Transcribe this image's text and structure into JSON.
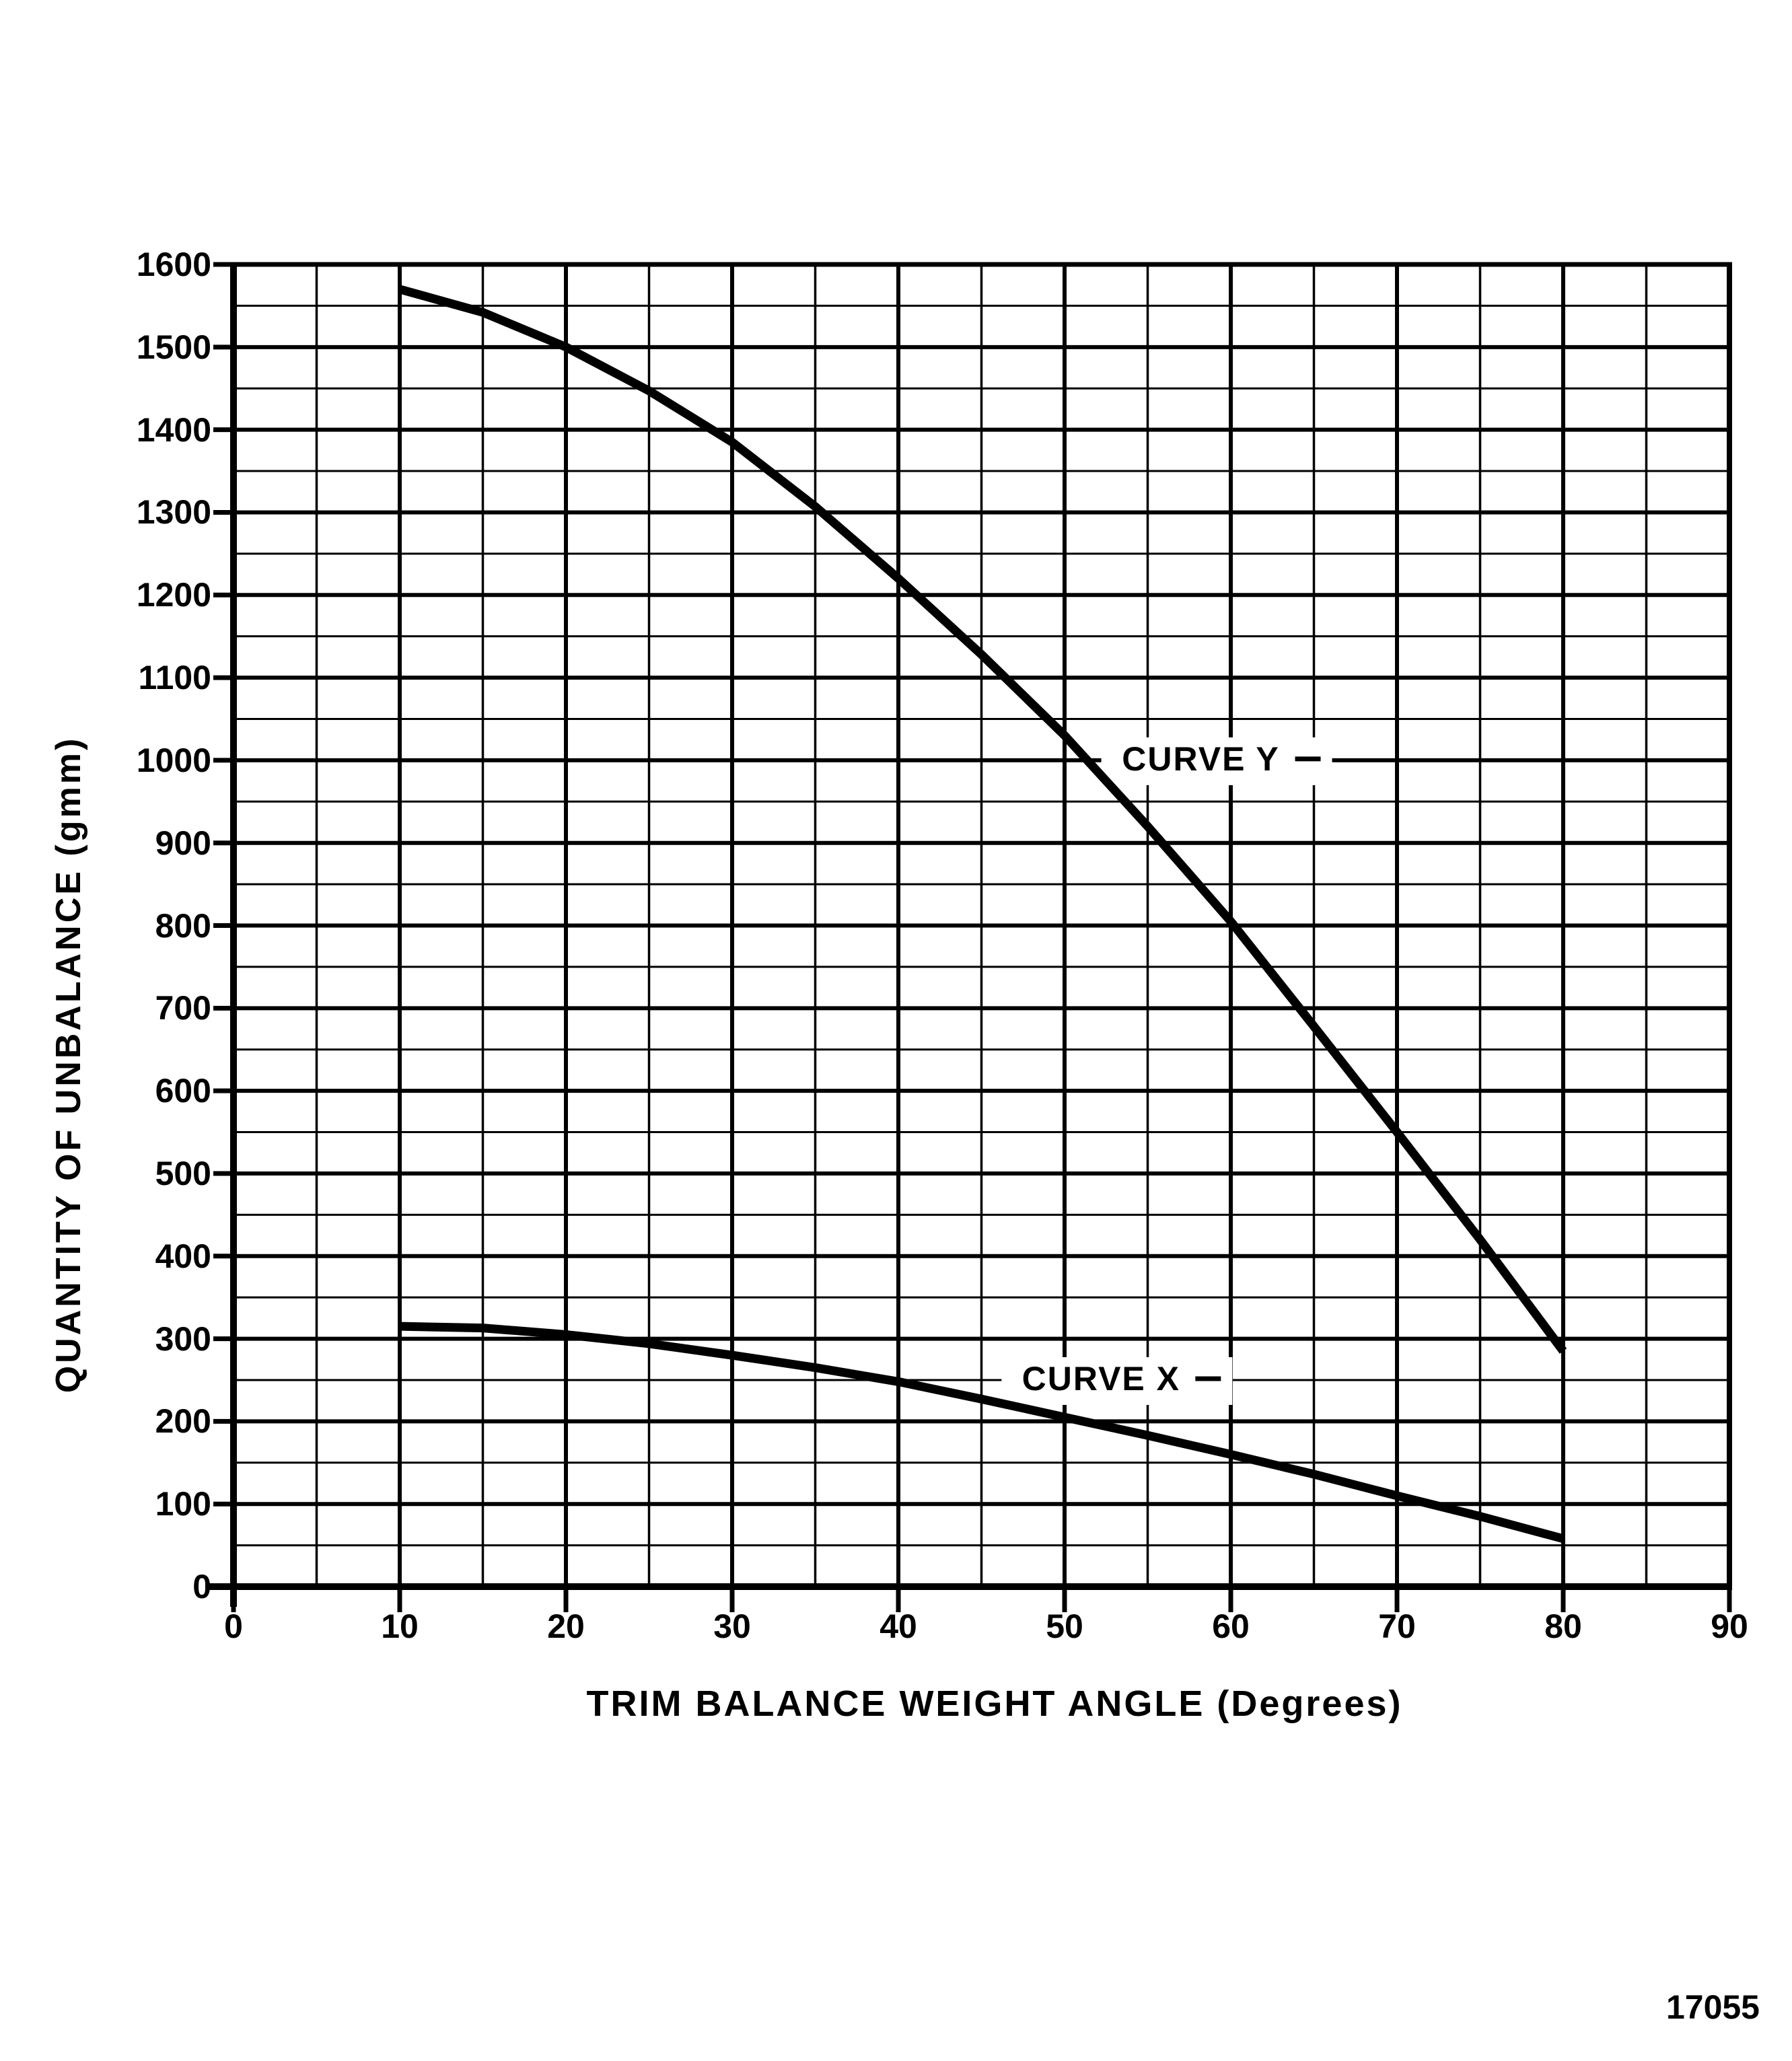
{
  "figure_number": "17055",
  "colors": {
    "ink": "#000000",
    "paper": "#ffffff"
  },
  "chart_data": {
    "type": "line",
    "title": "",
    "xlabel": "TRIM BALANCE WEIGHT ANGLE (Degrees)",
    "ylabel": "QUANTITY OF UNBALANCE  (gmm)",
    "xlim": [
      0,
      90
    ],
    "ylim": [
      0,
      1600
    ],
    "x_tick_step": 10,
    "y_tick_step": 100,
    "x_minor_step": 5,
    "y_minor_step": 50,
    "grid": "major+minor",
    "legend_position": "inline-annotations",
    "x_tick_labels": [
      "0",
      "10",
      "20",
      "30",
      "40",
      "50",
      "60",
      "70",
      "80",
      "90"
    ],
    "y_tick_labels": [
      "0",
      "100",
      "200",
      "300",
      "400",
      "500",
      "600",
      "700",
      "800",
      "900",
      "1000",
      "1100",
      "1200",
      "1300",
      "1400",
      "1500",
      "1600"
    ],
    "series": [
      {
        "name": "CURVE Y",
        "x": [
          10,
          15,
          20,
          25,
          30,
          35,
          40,
          45,
          50,
          55,
          60,
          65,
          70,
          75,
          80
        ],
        "values": [
          1570,
          1542,
          1500,
          1447,
          1385,
          1307,
          1220,
          1128,
          1030,
          920,
          805,
          678,
          550,
          420,
          285
        ]
      },
      {
        "name": "CURVE X",
        "x": [
          10,
          15,
          20,
          25,
          30,
          35,
          40,
          45,
          50,
          55,
          60,
          65,
          70,
          75,
          80
        ],
        "values": [
          315,
          313,
          305,
          294,
          280,
          265,
          248,
          227,
          205,
          183,
          160,
          136,
          110,
          85,
          58
        ]
      }
    ],
    "annotations": [
      {
        "text": "CURVE Y",
        "x": 58.2,
        "y": 1000
      },
      {
        "text": "CURVE X",
        "x": 52.2,
        "y": 250
      }
    ]
  }
}
